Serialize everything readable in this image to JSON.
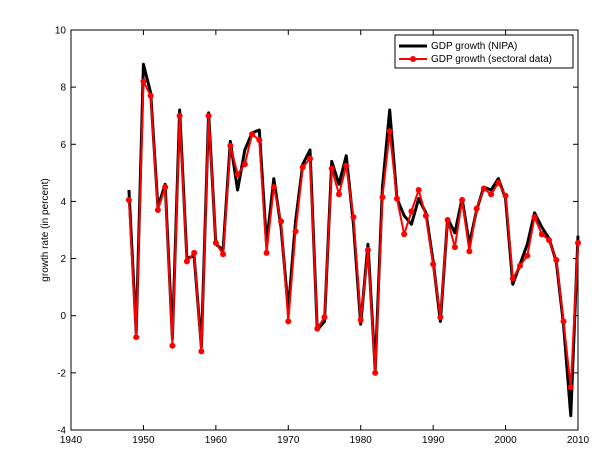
{
  "chart_data": {
    "type": "line",
    "title": "",
    "xlabel": "",
    "ylabel": "growth rate (in percent)",
    "xlim": [
      1940,
      2010
    ],
    "ylim": [
      -4,
      10
    ],
    "xticks": [
      1940,
      1950,
      1960,
      1970,
      1980,
      1990,
      2000,
      2010
    ],
    "yticks": [
      -4,
      -2,
      0,
      2,
      4,
      6,
      8,
      10
    ],
    "grid": false,
    "legend_position": "top-right",
    "x": [
      1948,
      1949,
      1950,
      1951,
      1952,
      1953,
      1954,
      1955,
      1956,
      1957,
      1958,
      1959,
      1960,
      1961,
      1962,
      1963,
      1964,
      1965,
      1966,
      1967,
      1968,
      1969,
      1970,
      1971,
      1972,
      1973,
      1974,
      1975,
      1976,
      1977,
      1978,
      1979,
      1980,
      1981,
      1982,
      1983,
      1984,
      1985,
      1986,
      1987,
      1988,
      1989,
      1990,
      1991,
      1992,
      1993,
      1994,
      1995,
      1996,
      1997,
      1998,
      1999,
      2000,
      2001,
      2002,
      2003,
      2004,
      2005,
      2006,
      2007,
      2008,
      2009,
      2010
    ],
    "series": [
      {
        "name": "GDP growth (NIPA)",
        "color": "#000000",
        "values": [
          4.4,
          -0.6,
          8.8,
          7.8,
          3.8,
          4.6,
          -0.8,
          7.2,
          2.0,
          2.1,
          -1.1,
          7.1,
          2.5,
          2.3,
          6.1,
          4.4,
          5.8,
          6.4,
          6.5,
          2.5,
          4.8,
          3.1,
          0.2,
          3.3,
          5.3,
          5.8,
          -0.5,
          -0.2,
          5.4,
          4.6,
          5.6,
          3.2,
          -0.3,
          2.5,
          -1.9,
          4.5,
          7.2,
          4.1,
          3.5,
          3.2,
          4.1,
          3.6,
          1.9,
          -0.2,
          3.4,
          2.9,
          4.1,
          2.5,
          3.7,
          4.5,
          4.4,
          4.8,
          4.1,
          1.1,
          1.8,
          2.5,
          3.6,
          3.1,
          2.7,
          1.9,
          -0.3,
          -3.5,
          2.8
        ]
      },
      {
        "name": "GDP growth (sectoral data)",
        "color": "#ff0000",
        "values": [
          4.05,
          -0.75,
          8.2,
          7.7,
          3.7,
          4.5,
          -1.05,
          7.0,
          1.9,
          2.2,
          -1.25,
          7.0,
          2.55,
          2.15,
          5.95,
          4.95,
          5.3,
          6.35,
          6.15,
          2.2,
          4.5,
          3.3,
          -0.2,
          2.95,
          5.2,
          5.5,
          -0.45,
          -0.05,
          5.15,
          4.25,
          5.25,
          3.45,
          -0.15,
          2.3,
          -2.0,
          4.15,
          6.45,
          4.1,
          2.85,
          3.65,
          4.4,
          3.5,
          1.8,
          -0.05,
          3.35,
          2.4,
          4.05,
          2.25,
          3.75,
          4.45,
          4.25,
          4.65,
          4.2,
          1.3,
          1.75,
          2.1,
          3.45,
          2.85,
          2.65,
          1.95,
          -0.2,
          -2.5,
          2.55
        ]
      }
    ]
  }
}
